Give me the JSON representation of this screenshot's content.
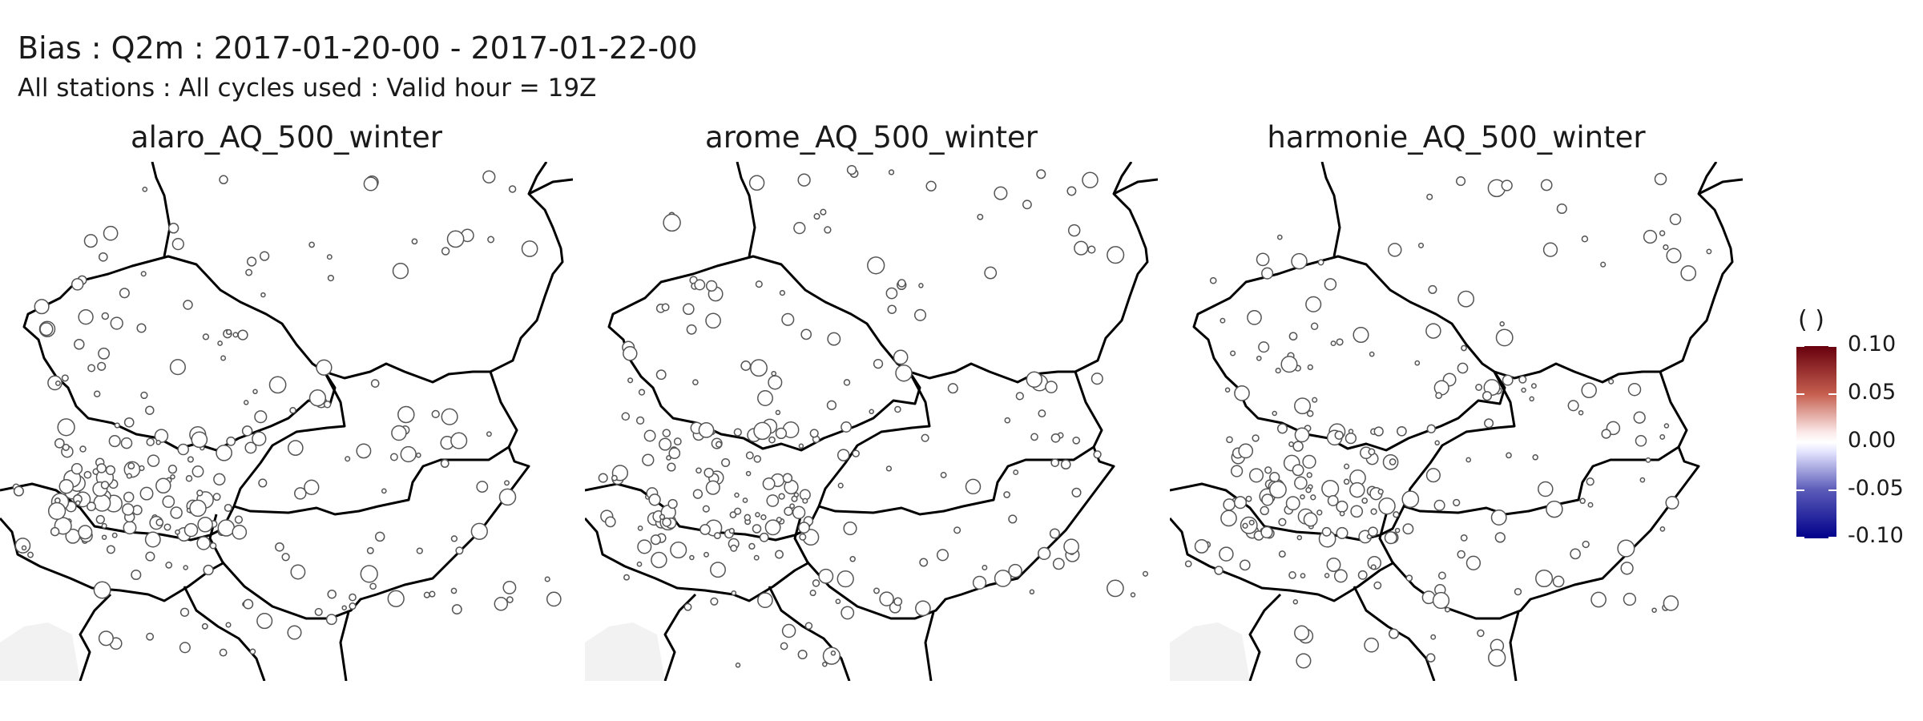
{
  "figure": {
    "title": "Bias : Q2m : 2017-01-20-00 - 2017-01-22-00",
    "subtitle": "All stations : All cycles used : Valid hour = 19Z"
  },
  "panels": [
    {
      "title": "alaro_AQ_500_winter",
      "seed": 11
    },
    {
      "title": "arome_AQ_500_winter",
      "seed": 23
    },
    {
      "title": "harmonie_AQ_500_winter",
      "seed": 37
    }
  ],
  "legend": {
    "title": "( )",
    "ticks": [
      "0.10",
      "0.05",
      "0.00",
      "-0.05",
      "-0.10"
    ],
    "colors": [
      "#67000d",
      "#c65f4f",
      "#fbeaea",
      "#ffffff",
      "#e4e4ff",
      "#5a5ab8",
      "#00008b"
    ]
  },
  "colors": {
    "border": "#000000",
    "station_stroke": "#555555",
    "station_fill": "#ffffff",
    "sea": "#f2f2f2"
  }
}
